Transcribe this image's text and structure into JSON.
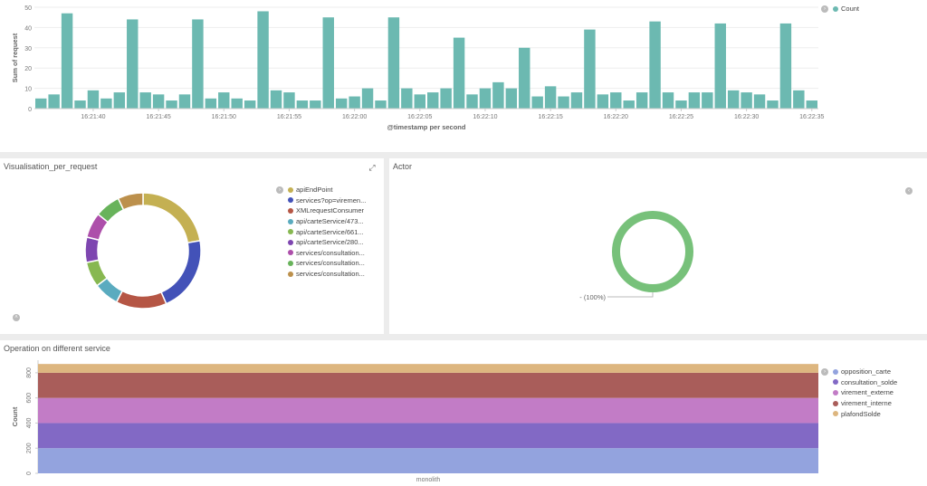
{
  "top_panel": {
    "legend": [
      {
        "label": "Count",
        "color": "#6cb9b1"
      }
    ],
    "chart_data": {
      "type": "bar",
      "xlabel": "@timestamp per second",
      "ylabel": "Sum of request",
      "ylim": [
        0,
        50
      ],
      "yticks": [
        0,
        10,
        20,
        30,
        40,
        50
      ],
      "xtick_labels": [
        "16:21:40",
        "16:21:45",
        "16:21:50",
        "16:21:55",
        "16:22:00",
        "16:22:05",
        "16:22:10",
        "16:22:15",
        "16:22:20",
        "16:22:25",
        "16:22:30",
        "16:22:35"
      ],
      "values": [
        5,
        7,
        47,
        4,
        9,
        5,
        8,
        44,
        8,
        7,
        4,
        7,
        44,
        5,
        8,
        5,
        4,
        48,
        9,
        8,
        4,
        4,
        45,
        5,
        6,
        10,
        4,
        45,
        10,
        7,
        8,
        10,
        35,
        7,
        10,
        13,
        10,
        30,
        6,
        11,
        6,
        8,
        39,
        7,
        8,
        4,
        8,
        43,
        8,
        4,
        8,
        8,
        42,
        9,
        8,
        7,
        4,
        42,
        9,
        4
      ]
    }
  },
  "left_panel": {
    "title": "Visualisation_per_request",
    "chart_data": {
      "type": "pie",
      "labels": [
        "apiEndPoint",
        "services?op=viremen...",
        "XMLrequestConsumer",
        "api/carteService/473...",
        "api/carteService/661...",
        "api/carteService/280...",
        "services/consultation...",
        "services/consultation...",
        "services/consultation..."
      ],
      "values": [
        22,
        21,
        14,
        7,
        7,
        7,
        7,
        7,
        7
      ],
      "colors": [
        "#c4b052",
        "#4352b8",
        "#b55645",
        "#5aabbf",
        "#87b851",
        "#7e46b0",
        "#ad4faa",
        "#68b35b",
        "#bc904c"
      ]
    }
  },
  "right_panel": {
    "title": "Actor",
    "chart_data": {
      "type": "pie",
      "labels": [
        "-"
      ],
      "values": [
        100
      ],
      "colors": [
        "#77c17a"
      ],
      "data_label": "- (100%)"
    }
  },
  "bottom_panel": {
    "title": "Operation on different service",
    "chart_data": {
      "type": "bar",
      "stacked": true,
      "categories": [
        "monolith"
      ],
      "ylabel": "Count",
      "ylim": [
        0,
        900
      ],
      "yticks": [
        0,
        200,
        400,
        600,
        800
      ],
      "series": [
        {
          "name": "opposition_carte",
          "values": [
            200
          ],
          "color": "#93a3de"
        },
        {
          "name": "consultation_solde",
          "values": [
            200
          ],
          "color": "#8269c5"
        },
        {
          "name": "virement_externe",
          "values": [
            200
          ],
          "color": "#c27cc6"
        },
        {
          "name": "virement_interne",
          "values": [
            200
          ],
          "color": "#a95d5a"
        },
        {
          "name": "plafondSolde",
          "values": [
            70
          ],
          "color": "#ddb67f"
        }
      ]
    }
  }
}
